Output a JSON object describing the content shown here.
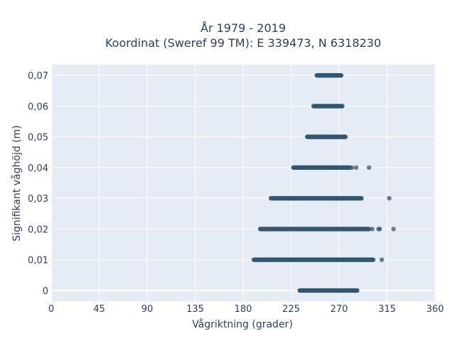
{
  "chart_data": {
    "type": "scatter",
    "title": "År 1979 - 2019",
    "subtitle": "Koordinat (Sweref 99 TM): E 339473, N 6318230",
    "xlabel": "Vågriktning (grader)",
    "ylabel": "Signifikant våghöjd (m)",
    "xlim": [
      0,
      360
    ],
    "ylim": [
      -0.0035,
      0.0735
    ],
    "xticks": [
      0,
      45,
      90,
      135,
      180,
      225,
      270,
      315,
      360
    ],
    "xtick_labels": [
      "0",
      "45",
      "90",
      "135",
      "180",
      "225",
      "270",
      "315",
      "360"
    ],
    "yticks": [
      0,
      0.01,
      0.02,
      0.03,
      0.04,
      0.05,
      0.06,
      0.07
    ],
    "ytick_labels": [
      "0",
      "0,01",
      "0,02",
      "0,03",
      "0,04",
      "0,05",
      "0,06",
      "0,07"
    ],
    "grid": true,
    "marker_color": "#34566f",
    "background_color": "#e5ecf6",
    "bands": [
      {
        "y": 0.0,
        "x_min": 233,
        "x_max": 287,
        "outliers": []
      },
      {
        "y": 0.01,
        "x_min": 190,
        "x_max": 302,
        "outliers": [
          310
        ]
      },
      {
        "y": 0.02,
        "x_min": 196,
        "x_max": 298,
        "outliers": [
          301,
          307,
          308,
          321
        ]
      },
      {
        "y": 0.03,
        "x_min": 206,
        "x_max": 291,
        "outliers": [
          317
        ]
      },
      {
        "y": 0.04,
        "x_min": 227,
        "x_max": 280,
        "outliers": [
          282,
          286,
          298
        ]
      },
      {
        "y": 0.05,
        "x_min": 240,
        "x_max": 276,
        "outliers": []
      },
      {
        "y": 0.06,
        "x_min": 246,
        "x_max": 273,
        "outliers": []
      },
      {
        "y": 0.07,
        "x_min": 249,
        "x_max": 272,
        "outliers": []
      }
    ]
  }
}
